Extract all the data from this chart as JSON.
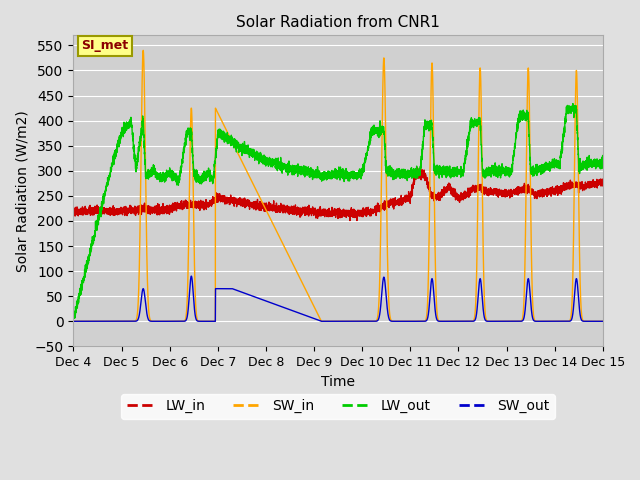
{
  "title": "Solar Radiation from CNR1",
  "xlabel": "Time",
  "ylabel": "Solar Radiation (W/m2)",
  "annotation": "SI_met",
  "ylim": [
    -50,
    570
  ],
  "yticks": [
    -50,
    0,
    50,
    100,
    150,
    200,
    250,
    300,
    350,
    400,
    450,
    500,
    550
  ],
  "background_color": "#e0e0e0",
  "plot_bg_color": "#d0d0d0",
  "series_colors": {
    "LW_in": "#cc0000",
    "SW_in": "#ffa500",
    "LW_out": "#00cc00",
    "SW_out": "#0000cc"
  },
  "x_start": 4.0,
  "x_end": 15.0,
  "xtick_labels": [
    "Dec 4",
    "Dec 5",
    "Dec 6",
    "Dec 7",
    "Dec 8",
    "Dec 9",
    "Dec 10",
    "Dec 11",
    "Dec 12",
    "Dec 13",
    "Dec 14",
    "Dec 15"
  ],
  "xtick_positions": [
    4,
    5,
    6,
    7,
    8,
    9,
    10,
    11,
    12,
    13,
    14,
    15
  ]
}
